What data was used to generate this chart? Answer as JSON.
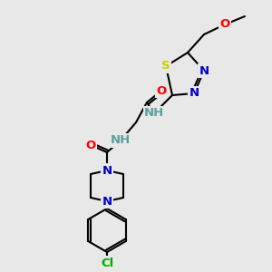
{
  "bg_color": "#e8e8e8",
  "bond_color": "#000000",
  "colors": {
    "N": "#0000cc",
    "O": "#ff0000",
    "S": "#cccc00",
    "Cl": "#00aa00",
    "H": "#5f9ea0",
    "C": "#000000"
  },
  "lw": 1.5,
  "fs": 9.5
}
